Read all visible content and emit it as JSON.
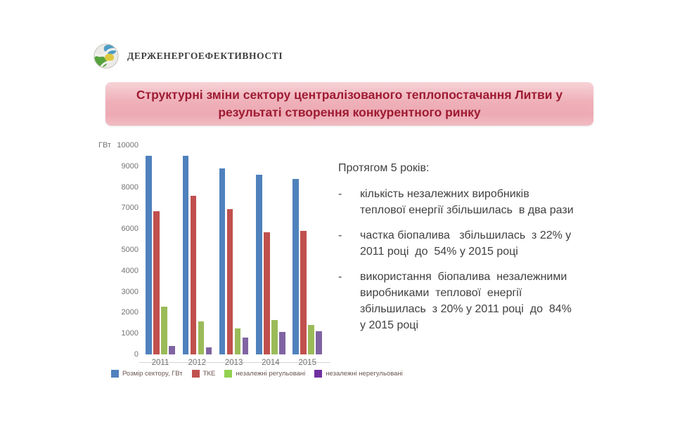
{
  "logo": {
    "text": "ДЕРЖЕНЕРГОЕФЕКТИВНОСТІ"
  },
  "title": {
    "line1": "Структурні зміни сектору централізованого теплопостачання Литви у",
    "line2": "результаті  створення конкурентного ринку",
    "text_color": "#9e1b32",
    "bg_color": "#efb0b9"
  },
  "chart_data": {
    "type": "bar",
    "unit_label": "ГВт",
    "categories": [
      "2011",
      "2012",
      "2013",
      "2014",
      "2015"
    ],
    "series": [
      {
        "name": "Розмір сектору, ГВт",
        "color": "#4f81bd",
        "legend_color": "#4f81bd",
        "values": [
          9500,
          9500,
          8900,
          8600,
          8400
        ]
      },
      {
        "name": "ТКЕ",
        "color": "#c0504d",
        "legend_color": "#c0504d",
        "values": [
          6850,
          7600,
          6950,
          5850,
          5900
        ]
      },
      {
        "name": "незалежні регульовані",
        "color": "#9bbb59",
        "legend_color": "#92d050",
        "values": [
          2280,
          1580,
          1230,
          1630,
          1400
        ]
      },
      {
        "name": "незалежні нерегульовані",
        "color": "#8064a2",
        "legend_color": "#7030a0",
        "values": [
          400,
          350,
          800,
          1080,
          1120
        ]
      }
    ],
    "ylim": [
      0,
      10000
    ],
    "ytick_step": 1000,
    "grid": false,
    "legend_position": "bottom"
  },
  "notes": {
    "heading": "Протягом 5 років:",
    "bullet": "-",
    "items": [
      "кількість незалежних виробників\nтеплової енергії збільшилась  в два рази",
      "частка біопалива   збільшилась  з 22% у\n2011 році  до  54% у 2015 році",
      "використання  біопалива  незалежними\nвиробниками  теплової  енергії\nзбільшилась  з 20% у 2011 році  до  84%\nу 2015 році"
    ]
  }
}
